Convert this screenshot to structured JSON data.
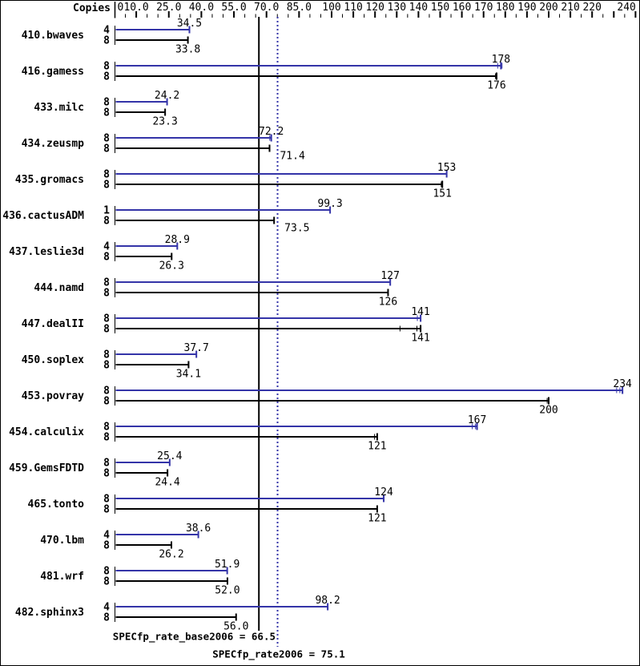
{
  "colors": {
    "peak": "#3434a8",
    "base": "#000000",
    "background": "#ffffff",
    "border": "#000000"
  },
  "chart_data": {
    "type": "bar",
    "orientation": "horizontal",
    "copies_header": "Copies",
    "axis": {
      "range": [
        0,
        242
      ],
      "labels": [
        {
          "v": 0,
          "t": "0"
        },
        {
          "v": 10,
          "t": "10.0"
        },
        {
          "v": 25,
          "t": "25.0"
        },
        {
          "v": 40,
          "t": "40.0"
        },
        {
          "v": 55,
          "t": "55.0"
        },
        {
          "v": 70,
          "t": "70.0"
        },
        {
          "v": 85,
          "t": "85.0"
        },
        {
          "v": 100,
          "t": "100"
        },
        {
          "v": 110,
          "t": "110"
        },
        {
          "v": 120,
          "t": "120"
        },
        {
          "v": 130,
          "t": "130"
        },
        {
          "v": 140,
          "t": "140"
        },
        {
          "v": 150,
          "t": "150"
        },
        {
          "v": 160,
          "t": "160"
        },
        {
          "v": 170,
          "t": "170"
        },
        {
          "v": 180,
          "t": "180"
        },
        {
          "v": 190,
          "t": "190"
        },
        {
          "v": 200,
          "t": "200"
        },
        {
          "v": 210,
          "t": "210"
        },
        {
          "v": 220,
          "t": "220"
        },
        {
          "v": 240,
          "t": "240"
        }
      ],
      "major_ticks": [
        10,
        25,
        40,
        55,
        70,
        85,
        100,
        110,
        120,
        130,
        140,
        150,
        160,
        170,
        180,
        190,
        200,
        210,
        220,
        230,
        240
      ],
      "minor_tick_step": 5
    },
    "series": [
      {
        "name": "peak",
        "color_key": "peak"
      },
      {
        "name": "base",
        "color_key": "base"
      }
    ],
    "benchmarks": [
      {
        "name": "410.bwaves",
        "peak": {
          "copies": "4",
          "value": 34.5,
          "label": "34.5"
        },
        "base": {
          "copies": "8",
          "value": 33.8,
          "label": "33.8"
        }
      },
      {
        "name": "416.gamess",
        "peak": {
          "copies": "8",
          "value": 178,
          "label": "178",
          "err": [
            176.5,
            178.5
          ]
        },
        "base": {
          "copies": "8",
          "value": 176,
          "label": "176",
          "err": [
            175.5
          ]
        }
      },
      {
        "name": "433.milc",
        "peak": {
          "copies": "8",
          "value": 24.2,
          "label": "24.2"
        },
        "base": {
          "copies": "8",
          "value": 23.3,
          "label": "23.3"
        }
      },
      {
        "name": "434.zeusmp",
        "peak": {
          "copies": "8",
          "value": 72.2,
          "label": "72.2",
          "err": [
            71.5
          ]
        },
        "base": {
          "copies": "8",
          "value": 71.4,
          "label": "71.4",
          "label_side": "right"
        }
      },
      {
        "name": "435.gromacs",
        "peak": {
          "copies": "8",
          "value": 153,
          "label": "153"
        },
        "base": {
          "copies": "8",
          "value": 151,
          "label": "151",
          "err": [
            150.5
          ]
        }
      },
      {
        "name": "436.cactusADM",
        "peak": {
          "copies": "1",
          "value": 99.3,
          "label": "99.3"
        },
        "base": {
          "copies": "8",
          "value": 73.5,
          "label": "73.5",
          "label_side": "right"
        }
      },
      {
        "name": "437.leslie3d",
        "peak": {
          "copies": "4",
          "value": 28.9,
          "label": "28.9"
        },
        "base": {
          "copies": "8",
          "value": 26.3,
          "label": "26.3"
        }
      },
      {
        "name": "444.namd",
        "peak": {
          "copies": "8",
          "value": 127,
          "label": "127"
        },
        "base": {
          "copies": "8",
          "value": 126,
          "label": "126"
        }
      },
      {
        "name": "447.dealII",
        "peak": {
          "copies": "8",
          "value": 141,
          "label": "141",
          "err": [
            139.5
          ]
        },
        "base": {
          "copies": "8",
          "value": 141,
          "label": "141",
          "err": [
            131.5,
            139.3
          ]
        }
      },
      {
        "name": "450.soplex",
        "peak": {
          "copies": "8",
          "value": 37.7,
          "label": "37.7"
        },
        "base": {
          "copies": "8",
          "value": 34.1,
          "label": "34.1"
        }
      },
      {
        "name": "453.povray",
        "peak": {
          "copies": "8",
          "value": 234,
          "label": "234",
          "err": [
            231.3,
            232.8
          ]
        },
        "base": {
          "copies": "8",
          "value": 200,
          "label": "200",
          "err": [
            199.3
          ]
        }
      },
      {
        "name": "454.calculix",
        "peak": {
          "copies": "8",
          "value": 167,
          "label": "167",
          "err": [
            164.8,
            166.3
          ]
        },
        "base": {
          "copies": "8",
          "value": 121,
          "label": "121",
          "err": [
            119.8
          ]
        }
      },
      {
        "name": "459.GemsFDTD",
        "peak": {
          "copies": "8",
          "value": 25.4,
          "label": "25.4"
        },
        "base": {
          "copies": "8",
          "value": 24.4,
          "label": "24.4"
        }
      },
      {
        "name": "465.tonto",
        "peak": {
          "copies": "8",
          "value": 124,
          "label": "124"
        },
        "base": {
          "copies": "8",
          "value": 121,
          "label": "121"
        }
      },
      {
        "name": "470.lbm",
        "peak": {
          "copies": "4",
          "value": 38.6,
          "label": "38.6"
        },
        "base": {
          "copies": "8",
          "value": 26.2,
          "label": "26.2"
        }
      },
      {
        "name": "481.wrf",
        "peak": {
          "copies": "8",
          "value": 51.9,
          "label": "51.9"
        },
        "base": {
          "copies": "8",
          "value": 52.0,
          "label": "52.0"
        }
      },
      {
        "name": "482.sphinx3",
        "peak": {
          "copies": "4",
          "value": 98.2,
          "label": "98.2"
        },
        "base": {
          "copies": "8",
          "value": 56.0,
          "label": "56.0"
        }
      }
    ],
    "reference_lines": [
      {
        "name": "SPECfp_rate_base2006",
        "value": 66.5,
        "style": "solid",
        "series": "base",
        "label": "SPECfp_rate_base2006 = 66.5"
      },
      {
        "name": "SPECfp_rate2006",
        "value": 75.1,
        "style": "dotted",
        "series": "peak",
        "label": "SPECfp_rate2006 = 75.1"
      }
    ]
  }
}
